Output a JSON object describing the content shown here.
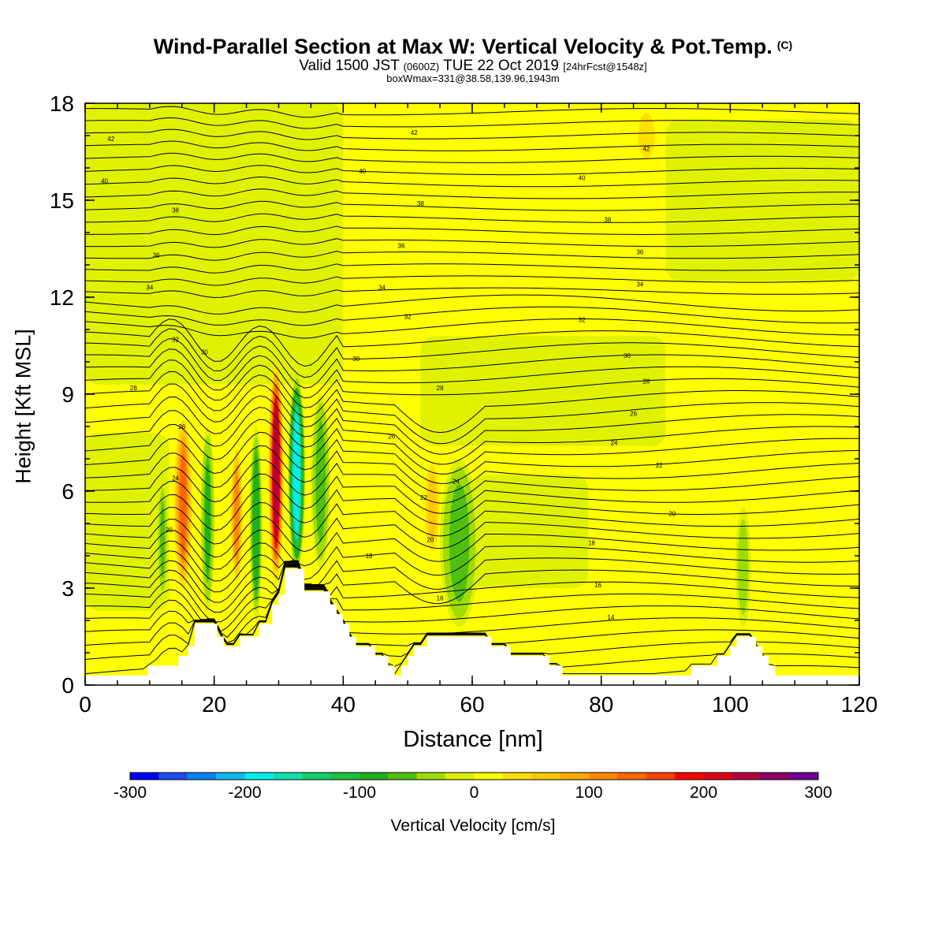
{
  "title": {
    "main": "Wind-Parallel Section at Max W: Vertical Velocity & Pot.Temp.",
    "copyright": "(C)",
    "valid_prefix": "Valid 1500 JST",
    "valid_z": "(0600Z)",
    "valid_date": "TUE 22 Oct 2019",
    "valid_fcst": "[24hrFcst@1548z]",
    "box_info": "boxWmax=331@38.58,139.96,1943m"
  },
  "chart_data": {
    "type": "heatmap",
    "xlabel": "Distance [nm]",
    "ylabel": "Height [Kft MSL]",
    "xlim": [
      0,
      120
    ],
    "ylim": [
      0,
      18
    ],
    "x_ticks": [
      "0",
      "20",
      "40",
      "60",
      "80",
      "100",
      "120"
    ],
    "y_ticks": [
      "0",
      "3",
      "6",
      "9",
      "12",
      "15",
      "18"
    ],
    "colorbar": {
      "label": "Vertical Velocity [cm/s]",
      "range": [
        -300,
        300
      ],
      "tick_labels": [
        "-300",
        "-200",
        "-100",
        "0",
        "100",
        "200",
        "300"
      ],
      "colors": [
        "#0000ff",
        "#1e4ef0",
        "#0a82f0",
        "#10b8f0",
        "#00f0f0",
        "#10e0b0",
        "#10d070",
        "#20c040",
        "#20b020",
        "#50c010",
        "#a0dc00",
        "#dcf000",
        "#ffff00",
        "#ffe000",
        "#ffc800",
        "#ffaa00",
        "#ff8800",
        "#ff6600",
        "#ff4000",
        "#ff0000",
        "#dc0010",
        "#b40040",
        "#8c0064",
        "#6e0096"
      ]
    },
    "terrain": [
      [
        0,
        0.3
      ],
      [
        9.7,
        0.3
      ],
      [
        9.7,
        0.6
      ],
      [
        14.5,
        0.6
      ],
      [
        14.5,
        0.9
      ],
      [
        16,
        0.9
      ],
      [
        16,
        1.2
      ],
      [
        17,
        1.2
      ],
      [
        17,
        1.9
      ],
      [
        20.5,
        1.9
      ],
      [
        20.5,
        1.5
      ],
      [
        21.5,
        1.5
      ],
      [
        21.5,
        1.2
      ],
      [
        24,
        1.2
      ],
      [
        24,
        1.5
      ],
      [
        27,
        1.5
      ],
      [
        27,
        1.9
      ],
      [
        29,
        1.9
      ],
      [
        29,
        2.5
      ],
      [
        30,
        2.5
      ],
      [
        30,
        2.8
      ],
      [
        31,
        2.8
      ],
      [
        31,
        3.6
      ],
      [
        34,
        3.6
      ],
      [
        34,
        2.9
      ],
      [
        38,
        2.9
      ],
      [
        38,
        2.5
      ],
      [
        39,
        2.5
      ],
      [
        39,
        2.2
      ],
      [
        40,
        2.2
      ],
      [
        40,
        1.9
      ],
      [
        41,
        1.9
      ],
      [
        41,
        1.5
      ],
      [
        42,
        1.5
      ],
      [
        42,
        1.2
      ],
      [
        45,
        1.2
      ],
      [
        45,
        0.9
      ],
      [
        47,
        0.9
      ],
      [
        47,
        0.6
      ],
      [
        48,
        0.6
      ],
      [
        48,
        0.3
      ],
      [
        49,
        0.3
      ],
      [
        49,
        0.6
      ],
      [
        50,
        0.6
      ],
      [
        50,
        0.9
      ],
      [
        51,
        0.9
      ],
      [
        51,
        1.2
      ],
      [
        53,
        1.2
      ],
      [
        53,
        1.5
      ],
      [
        63,
        1.5
      ],
      [
        63,
        1.2
      ],
      [
        66,
        1.2
      ],
      [
        66,
        0.9
      ],
      [
        72,
        0.9
      ],
      [
        72,
        0.6
      ],
      [
        74,
        0.6
      ],
      [
        74,
        0.3
      ],
      [
        94,
        0.3
      ],
      [
        94,
        0.6
      ],
      [
        98,
        0.6
      ],
      [
        98,
        0.9
      ],
      [
        100,
        0.9
      ],
      [
        100,
        1.2
      ],
      [
        101,
        1.2
      ],
      [
        101,
        1.5
      ],
      [
        104,
        1.5
      ],
      [
        104,
        1.2
      ],
      [
        105,
        1.2
      ],
      [
        105,
        0.9
      ],
      [
        106,
        0.9
      ],
      [
        106,
        0.6
      ],
      [
        107,
        0.6
      ],
      [
        107,
        0.3
      ],
      [
        120,
        0.3
      ]
    ],
    "updrafts": [
      {
        "x": 15.2,
        "z0": 3.0,
        "z1": 8.2,
        "w": 140,
        "halfwidth": 1.4
      },
      {
        "x": 23.5,
        "z0": 3.0,
        "z1": 7.5,
        "w": 110,
        "halfwidth": 1.1
      },
      {
        "x": 29.6,
        "z0": 3.2,
        "z1": 10.0,
        "w": 230,
        "halfwidth": 1.2
      },
      {
        "x": 53.8,
        "z0": 4.0,
        "z1": 7.0,
        "w": 70,
        "halfwidth": 1.3
      },
      {
        "x": 87.0,
        "z0": 16.0,
        "z1": 18.0,
        "w": 40,
        "halfwidth": 2.5
      }
    ],
    "downdrafts": [
      {
        "x": 12.0,
        "z0": 2.5,
        "z1": 6.5,
        "w": -60,
        "halfwidth": 1.0
      },
      {
        "x": 19.0,
        "z0": 2.3,
        "z1": 8.0,
        "w": -80,
        "halfwidth": 1.1
      },
      {
        "x": 26.5,
        "z0": 2.0,
        "z1": 8.0,
        "w": -100,
        "halfwidth": 1.0
      },
      {
        "x": 32.8,
        "z0": 3.6,
        "z1": 9.5,
        "w": -190,
        "halfwidth": 1.3
      },
      {
        "x": 36.5,
        "z0": 3.6,
        "z1": 9.0,
        "w": -70,
        "halfwidth": 1.5
      },
      {
        "x": 58.0,
        "z0": 1.8,
        "z1": 7.0,
        "w": -70,
        "halfwidth": 3.0
      },
      {
        "x": 102.0,
        "z0": 1.8,
        "z1": 5.5,
        "w": -50,
        "halfwidth": 1.2
      }
    ],
    "theta_labels": [
      {
        "x": 4,
        "z": 16.9,
        "v": "42"
      },
      {
        "x": 51,
        "z": 17.1,
        "v": "42"
      },
      {
        "x": 87,
        "z": 16.6,
        "v": "42"
      },
      {
        "x": 3,
        "z": 15.6,
        "v": "40"
      },
      {
        "x": 43,
        "z": 15.9,
        "v": "40"
      },
      {
        "x": 77,
        "z": 15.7,
        "v": "40"
      },
      {
        "x": 14,
        "z": 14.7,
        "v": "38"
      },
      {
        "x": 52,
        "z": 14.9,
        "v": "38"
      },
      {
        "x": 81,
        "z": 14.4,
        "v": "38"
      },
      {
        "x": 11,
        "z": 13.3,
        "v": "36"
      },
      {
        "x": 49,
        "z": 13.6,
        "v": "36"
      },
      {
        "x": 86,
        "z": 13.4,
        "v": "36"
      },
      {
        "x": 10,
        "z": 12.3,
        "v": "34"
      },
      {
        "x": 46,
        "z": 12.3,
        "v": "34"
      },
      {
        "x": 86,
        "z": 12.4,
        "v": "34"
      },
      {
        "x": 14,
        "z": 10.7,
        "v": "32"
      },
      {
        "x": 50,
        "z": 11.4,
        "v": "32"
      },
      {
        "x": 77,
        "z": 11.3,
        "v": "32"
      },
      {
        "x": 18.5,
        "z": 10.3,
        "v": "30"
      },
      {
        "x": 42,
        "z": 10.1,
        "v": "30"
      },
      {
        "x": 84,
        "z": 10.2,
        "v": "30"
      },
      {
        "x": 7.5,
        "z": 9.2,
        "v": "28"
      },
      {
        "x": 55,
        "z": 9.2,
        "v": "28"
      },
      {
        "x": 87,
        "z": 9.4,
        "v": "28"
      },
      {
        "x": 15,
        "z": 8.0,
        "v": "26"
      },
      {
        "x": 47.5,
        "z": 7.7,
        "v": "26"
      },
      {
        "x": 85,
        "z": 8.4,
        "v": "26"
      },
      {
        "x": 14,
        "z": 6.4,
        "v": "24"
      },
      {
        "x": 57.5,
        "z": 6.3,
        "v": "24"
      },
      {
        "x": 82,
        "z": 7.5,
        "v": "24"
      },
      {
        "x": 52.5,
        "z": 5.8,
        "v": "22"
      },
      {
        "x": 89,
        "z": 6.8,
        "v": "22"
      },
      {
        "x": 13,
        "z": 4.8,
        "v": "20"
      },
      {
        "x": 53.5,
        "z": 4.5,
        "v": "20"
      },
      {
        "x": 91,
        "z": 5.3,
        "v": "20"
      },
      {
        "x": 44,
        "z": 4.0,
        "v": "18"
      },
      {
        "x": 78.5,
        "z": 4.4,
        "v": "18"
      },
      {
        "x": 55,
        "z": 2.7,
        "v": "16"
      },
      {
        "x": 79.5,
        "z": 3.1,
        "v": "16"
      },
      {
        "x": 81.5,
        "z": 2.1,
        "v": "14"
      }
    ]
  }
}
